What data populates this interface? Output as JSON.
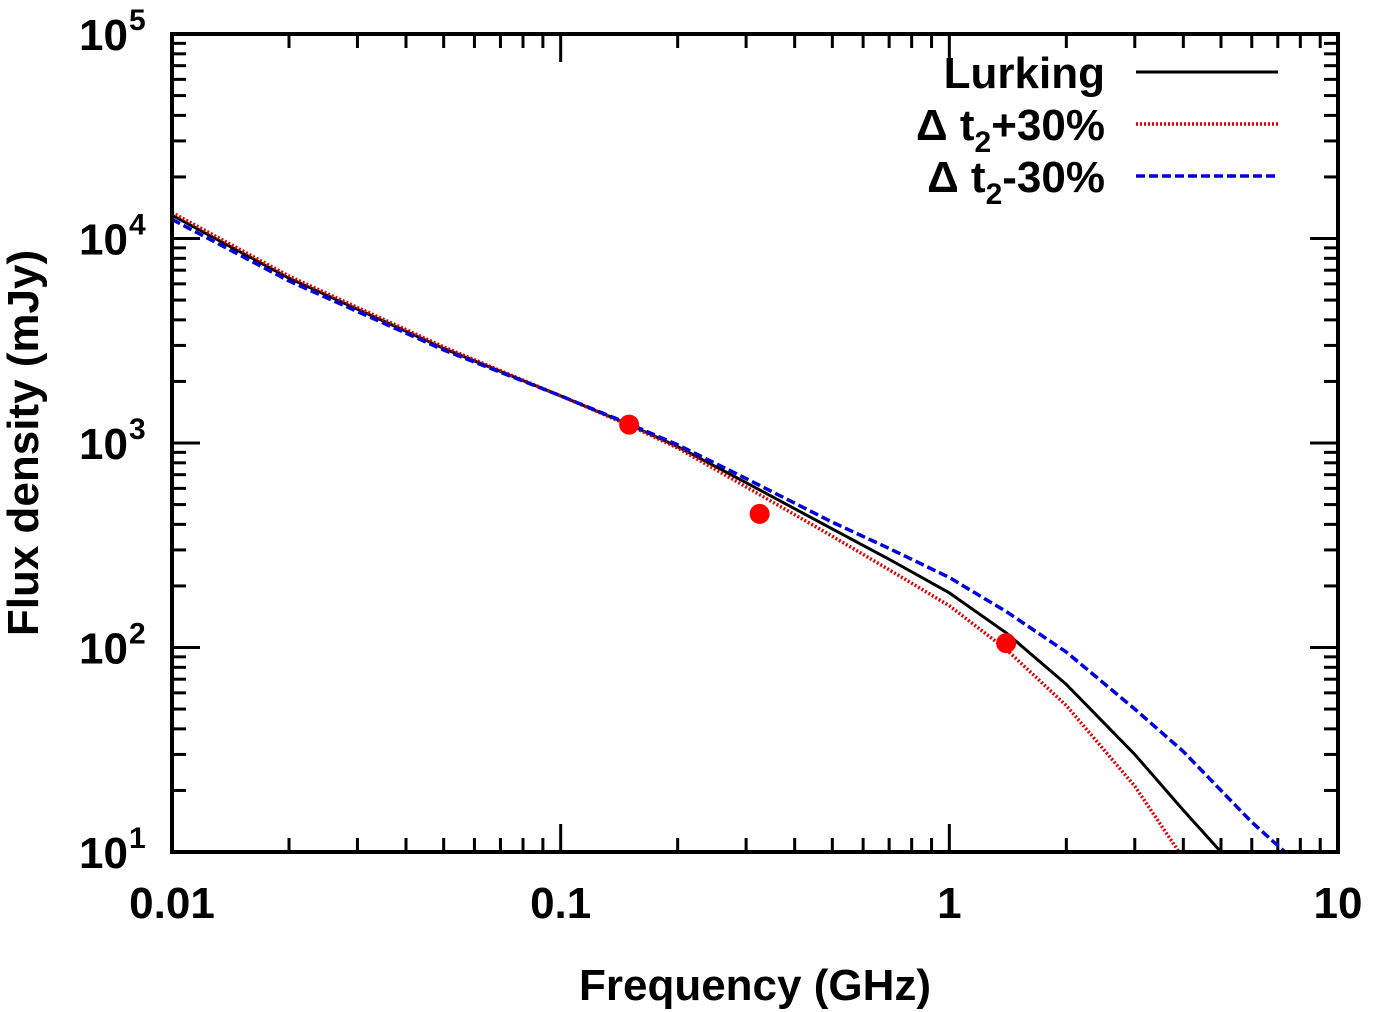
{
  "chart_data": {
    "type": "line",
    "title": "",
    "xlabel": "Frequency (GHz)",
    "ylabel": "Flux density (mJy)",
    "xscale": "log",
    "yscale": "log",
    "xlim": [
      0.01,
      10
    ],
    "ylim": [
      10,
      100000
    ],
    "grid": false,
    "legend_position": "top-right",
    "x_ticks": [
      {
        "value": 0.01,
        "label": "0.01"
      },
      {
        "value": 0.1,
        "label": "0.1"
      },
      {
        "value": 1,
        "label": "1"
      },
      {
        "value": 10,
        "label": "10"
      }
    ],
    "y_ticks": [
      {
        "value": 10,
        "base": "10",
        "exp": "1"
      },
      {
        "value": 100,
        "base": "10",
        "exp": "2"
      },
      {
        "value": 1000,
        "base": "10",
        "exp": "3"
      },
      {
        "value": 10000,
        "base": "10",
        "exp": "4"
      },
      {
        "value": 100000,
        "base": "10",
        "exp": "5"
      }
    ],
    "series": [
      {
        "name": "Lurking",
        "label_main": "Lurking",
        "label_sub": "",
        "label_rest": "",
        "color": "#000000",
        "dash": "solid",
        "x": [
          0.01,
          0.02,
          0.05,
          0.1,
          0.15,
          0.2,
          0.3,
          0.5,
          0.7,
          1.0,
          1.4,
          2.0,
          3.0,
          4.0,
          5.0
        ],
        "y": [
          13000,
          6400,
          2900,
          1700,
          1230,
          960,
          640,
          380,
          270,
          185,
          118,
          66,
          30,
          16,
          10
        ]
      },
      {
        "name": "Δ t2+30%",
        "label_main": "Δ t",
        "label_sub": "2",
        "label_rest": "+30%",
        "color": "#e00000",
        "dash": "dotted",
        "x": [
          0.01,
          0.02,
          0.05,
          0.1,
          0.15,
          0.2,
          0.3,
          0.5,
          0.7,
          1.0,
          1.4,
          2.0,
          3.0,
          3.9
        ],
        "y": [
          13400,
          6550,
          2950,
          1700,
          1220,
          945,
          610,
          350,
          240,
          160,
          98,
          52,
          21,
          10
        ]
      },
      {
        "name": "Δ t2-30%",
        "label_main": "Δ t",
        "label_sub": "2",
        "label_rest": "-30%",
        "color": "#0000dd",
        "dash": "dashed",
        "x": [
          0.01,
          0.02,
          0.05,
          0.1,
          0.15,
          0.2,
          0.3,
          0.5,
          0.7,
          1.0,
          1.4,
          2.0,
          3.0,
          4.0,
          5.0,
          6.0,
          7.3
        ],
        "y": [
          12400,
          6200,
          2850,
          1700,
          1240,
          980,
          670,
          410,
          305,
          220,
          150,
          95,
          50,
          31,
          20,
          14,
          10
        ]
      }
    ],
    "points": [
      {
        "x": 0.15,
        "y": 1230,
        "y_err": 120,
        "color": "#ff0000"
      },
      {
        "x": 0.325,
        "y": 450,
        "color": "#ff0000"
      },
      {
        "x": 1.4,
        "y": 105,
        "color": "#ff0000"
      }
    ]
  }
}
